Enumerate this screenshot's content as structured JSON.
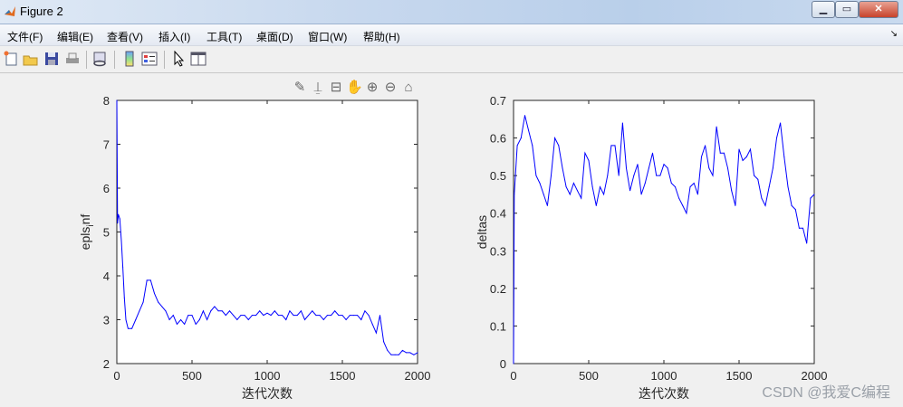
{
  "window": {
    "title": "Figure 2",
    "controls": [
      "minimize",
      "maximize",
      "close"
    ]
  },
  "menu": [
    {
      "label": "文件(F)"
    },
    {
      "label": "编辑(E)"
    },
    {
      "label": "查看(V)"
    },
    {
      "label": "插入(I)"
    },
    {
      "label": "工具(T)"
    },
    {
      "label": "桌面(D)"
    },
    {
      "label": "窗口(W)"
    },
    {
      "label": "帮助(H)"
    }
  ],
  "toolbar": [
    "new-figure-icon",
    "open-file-icon",
    "save-icon",
    "print-icon",
    "link-plot-icon",
    "colorbar-icon",
    "legend-icon",
    "pointer-icon",
    "property-inspector-icon"
  ],
  "axes_toolbar": [
    "brush-icon",
    "data-cursor-icon",
    "legend-toggle-icon",
    "pan-icon",
    "zoom-in-icon",
    "zoom-out-icon",
    "home-icon"
  ],
  "watermark": "CSDN @我爱C编程",
  "chart_data": [
    {
      "type": "line",
      "xlabel": "迭代次数",
      "ylabel": "epls_inf",
      "xlim": [
        0,
        2000
      ],
      "ylim": [
        2,
        8
      ],
      "xticks": [
        0,
        500,
        1000,
        1500,
        2000
      ],
      "yticks": [
        2,
        3,
        4,
        5,
        6,
        7,
        8
      ],
      "color": "#0000ff",
      "grid": false,
      "x": [
        0,
        5,
        10,
        20,
        30,
        40,
        50,
        60,
        75,
        100,
        125,
        150,
        175,
        200,
        225,
        250,
        275,
        300,
        325,
        350,
        375,
        400,
        425,
        450,
        475,
        500,
        525,
        550,
        575,
        600,
        625,
        650,
        675,
        700,
        725,
        750,
        775,
        800,
        825,
        850,
        875,
        900,
        925,
        950,
        975,
        1000,
        1025,
        1050,
        1075,
        1100,
        1125,
        1150,
        1175,
        1200,
        1225,
        1250,
        1275,
        1300,
        1325,
        1350,
        1375,
        1400,
        1425,
        1450,
        1475,
        1500,
        1525,
        1550,
        1575,
        1600,
        1625,
        1650,
        1675,
        1700,
        1725,
        1750,
        1775,
        1800,
        1825,
        1850,
        1875,
        1900,
        1925,
        1950,
        1975,
        2000
      ],
      "y": [
        8,
        5.2,
        5.4,
        5.3,
        4.8,
        4.2,
        3.5,
        3.0,
        2.8,
        2.8,
        3.0,
        3.2,
        3.4,
        3.9,
        3.9,
        3.6,
        3.4,
        3.3,
        3.2,
        3.0,
        3.1,
        2.9,
        3.0,
        2.9,
        3.1,
        3.1,
        2.9,
        3.0,
        3.2,
        3.0,
        3.2,
        3.3,
        3.2,
        3.2,
        3.1,
        3.2,
        3.1,
        3.0,
        3.1,
        3.1,
        3.0,
        3.1,
        3.1,
        3.2,
        3.1,
        3.15,
        3.1,
        3.2,
        3.1,
        3.1,
        3.0,
        3.2,
        3.1,
        3.1,
        3.2,
        3.0,
        3.1,
        3.2,
        3.1,
        3.1,
        3.0,
        3.1,
        3.1,
        3.2,
        3.1,
        3.1,
        3.0,
        3.1,
        3.1,
        3.1,
        3.0,
        3.2,
        3.1,
        2.9,
        2.7,
        3.1,
        2.5,
        2.3,
        2.2,
        2.2,
        2.2,
        2.3,
        2.25,
        2.25,
        2.2,
        2.25
      ]
    },
    {
      "type": "line",
      "xlabel": "迭代次数",
      "ylabel": "deltas",
      "xlim": [
        0,
        2000
      ],
      "ylim": [
        0,
        0.7
      ],
      "xticks": [
        0,
        500,
        1000,
        1500,
        2000
      ],
      "yticks": [
        0,
        0.1,
        0.2,
        0.3,
        0.4,
        0.5,
        0.6,
        0.7
      ],
      "color": "#0000ff",
      "grid": false,
      "x": [
        0,
        5,
        25,
        50,
        75,
        100,
        125,
        150,
        175,
        200,
        225,
        250,
        275,
        300,
        325,
        350,
        375,
        400,
        425,
        450,
        475,
        500,
        525,
        550,
        575,
        600,
        625,
        650,
        675,
        700,
        725,
        750,
        775,
        800,
        825,
        850,
        875,
        900,
        925,
        950,
        975,
        1000,
        1025,
        1050,
        1075,
        1100,
        1125,
        1150,
        1175,
        1200,
        1225,
        1250,
        1275,
        1300,
        1325,
        1350,
        1375,
        1400,
        1425,
        1450,
        1475,
        1500,
        1525,
        1550,
        1575,
        1600,
        1625,
        1650,
        1675,
        1700,
        1725,
        1750,
        1775,
        1800,
        1825,
        1850,
        1875,
        1900,
        1925,
        1950,
        1975,
        2000
      ],
      "y": [
        0,
        0.45,
        0.58,
        0.6,
        0.66,
        0.62,
        0.58,
        0.5,
        0.48,
        0.45,
        0.42,
        0.5,
        0.6,
        0.58,
        0.52,
        0.47,
        0.45,
        0.48,
        0.46,
        0.44,
        0.56,
        0.54,
        0.47,
        0.42,
        0.47,
        0.45,
        0.5,
        0.58,
        0.58,
        0.5,
        0.64,
        0.52,
        0.46,
        0.5,
        0.53,
        0.45,
        0.48,
        0.52,
        0.56,
        0.5,
        0.5,
        0.53,
        0.52,
        0.48,
        0.47,
        0.44,
        0.42,
        0.4,
        0.47,
        0.48,
        0.45,
        0.55,
        0.58,
        0.52,
        0.5,
        0.63,
        0.56,
        0.56,
        0.52,
        0.46,
        0.42,
        0.57,
        0.54,
        0.55,
        0.57,
        0.5,
        0.49,
        0.44,
        0.42,
        0.47,
        0.52,
        0.6,
        0.64,
        0.55,
        0.47,
        0.42,
        0.41,
        0.36,
        0.36,
        0.32,
        0.44,
        0.45
      ]
    }
  ]
}
